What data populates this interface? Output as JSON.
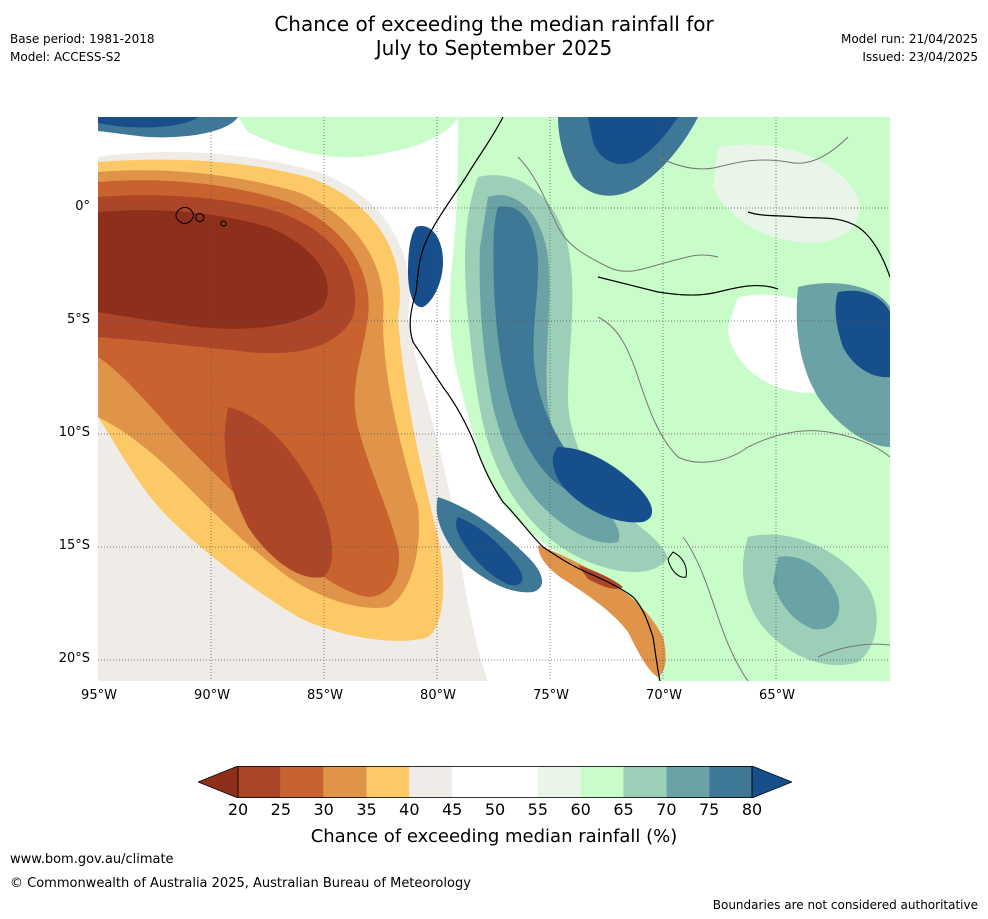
{
  "header": {
    "title_line1": "Chance of exceeding the median rainfall for",
    "title_line2": "July to September 2025",
    "base_period": "Base period: 1981-2018",
    "model": "Model: ACCESS-S2",
    "model_run": "Model run: 21/04/2025",
    "issued": "Issued: 23/04/2025"
  },
  "axes": {
    "latitudes": [
      "0°",
      "5°S",
      "10°S",
      "15°S",
      "20°S"
    ],
    "longitudes": [
      "95°W",
      "90°W",
      "85°W",
      "80°W",
      "75°W",
      "70°W",
      "65°W"
    ]
  },
  "colorbar": {
    "ticks": [
      "20",
      "25",
      "30",
      "35",
      "40",
      "45",
      "50",
      "55",
      "60",
      "65",
      "70",
      "75",
      "80"
    ],
    "colors": [
      "#8e2f1c",
      "#ad4628",
      "#c8622f",
      "#e0944a",
      "#fdc866",
      "#efebe6",
      "#ffffff",
      "#ffffff",
      "#e8f5e8",
      "#c8fcc8",
      "#9bcfb7",
      "#6aa2a6",
      "#3f7896",
      "#164f8c"
    ],
    "label": "Chance of exceeding median rainfall (%)"
  },
  "footer": {
    "website": "www.bom.gov.au/climate",
    "copyright": "© Commonwealth of Australia 2025, Australian Bureau of Meteorology",
    "disclaimer": "Boundaries are not considered authoritative"
  }
}
